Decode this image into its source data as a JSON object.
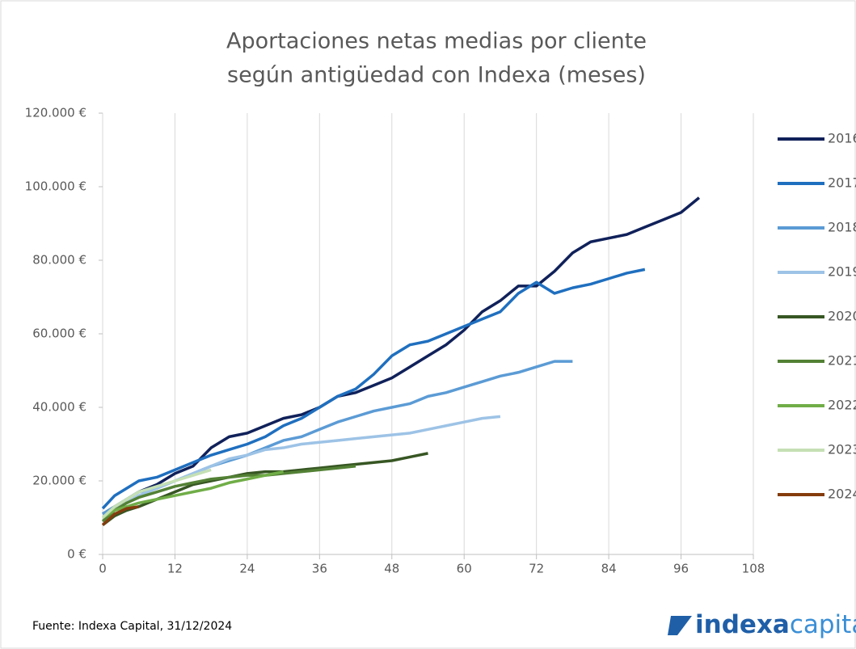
{
  "chart_data": {
    "type": "line",
    "title": [
      "Aportaciones netas medias por cliente",
      "según antigüedad con Indexa (meses)"
    ],
    "x": [
      0,
      2,
      4,
      6,
      9,
      12,
      15,
      18,
      21,
      24,
      27,
      30,
      33,
      36,
      39,
      42,
      45,
      48,
      51,
      54,
      57,
      60,
      63,
      66,
      69,
      72,
      75,
      78,
      81,
      84,
      87,
      90,
      93,
      96,
      99
    ],
    "xlim": [
      0,
      108
    ],
    "xticks": [
      0,
      12,
      24,
      36,
      48,
      60,
      72,
      84,
      96,
      108
    ],
    "ylim": [
      0,
      120000
    ],
    "yticks": [
      {
        "value": 0,
        "label": "0 €"
      },
      {
        "value": 20000,
        "label": "20.000 €"
      },
      {
        "value": 40000,
        "label": "40.000 €"
      },
      {
        "value": 60000,
        "label": "60.000 €"
      },
      {
        "value": 80000,
        "label": "80.000 €"
      },
      {
        "value": 100000,
        "label": "100.000 €"
      },
      {
        "value": 120000,
        "label": "120.000 €"
      }
    ],
    "grid": "x",
    "legend": "right",
    "series": [
      {
        "name": "2016",
        "color": "#10215a",
        "values": [
          11000,
          13000,
          15000,
          17000,
          19000,
          22000,
          24000,
          29000,
          32000,
          33000,
          35000,
          37000,
          38000,
          40000,
          43000,
          44000,
          46000,
          48000,
          51000,
          54000,
          57000,
          61000,
          66000,
          69000,
          73000,
          73000,
          77000,
          82000,
          85000,
          86000,
          87000,
          89000,
          91000,
          93000,
          97000
        ]
      },
      {
        "name": "2017",
        "color": "#1f6fbf",
        "values": [
          12500,
          16000,
          18000,
          20000,
          21000,
          23000,
          25000,
          27000,
          28500,
          30000,
          32000,
          35000,
          37000,
          40000,
          43000,
          45000,
          49000,
          54000,
          57000,
          58000,
          60000,
          62000,
          64000,
          66000,
          71000,
          74000,
          71000,
          72500,
          73500,
          75000,
          76500,
          77500,
          null,
          null,
          null
        ]
      },
      {
        "name": "2018",
        "color": "#5b9bd5",
        "values": [
          11000,
          13000,
          15000,
          17000,
          18000,
          20000,
          22000,
          24000,
          25500,
          27000,
          29000,
          31000,
          32000,
          34000,
          36000,
          37500,
          39000,
          40000,
          41000,
          43000,
          44000,
          45500,
          47000,
          48500,
          49500,
          51000,
          52500,
          52500,
          null,
          null,
          null,
          null,
          null,
          null,
          null
        ]
      },
      {
        "name": "2019",
        "color": "#9dc3e6",
        "values": [
          10000,
          12000,
          14000,
          16000,
          18000,
          20000,
          22000,
          24000,
          26000,
          27000,
          28500,
          29000,
          30000,
          30500,
          31000,
          31500,
          32000,
          32500,
          33000,
          34000,
          35000,
          36000,
          37000,
          37500,
          null,
          null,
          null,
          null,
          null,
          null,
          null,
          null,
          null,
          null,
          null
        ]
      },
      {
        "name": "2020",
        "color": "#375623",
        "values": [
          8000,
          10500,
          12000,
          13000,
          15000,
          17000,
          19000,
          20000,
          21000,
          22000,
          22500,
          22500,
          23000,
          23500,
          24000,
          24500,
          25000,
          25500,
          26500,
          27500,
          null,
          null,
          null,
          null,
          null,
          null,
          null,
          null,
          null,
          null,
          null,
          null,
          null,
          null,
          null
        ]
      },
      {
        "name": "2021",
        "color": "#538135",
        "values": [
          9000,
          12000,
          14000,
          15500,
          17000,
          18500,
          19500,
          20500,
          21000,
          21500,
          21500,
          22000,
          22500,
          23000,
          23500,
          24000,
          null,
          null,
          null,
          null,
          null,
          null,
          null,
          null,
          null,
          null,
          null,
          null,
          null,
          null,
          null,
          null,
          null,
          null,
          null
        ]
      },
      {
        "name": "2022",
        "color": "#70ad47",
        "values": [
          10000,
          12000,
          13000,
          14000,
          15000,
          16000,
          17000,
          18000,
          19500,
          20500,
          21500,
          22500,
          null,
          null,
          null,
          null,
          null,
          null,
          null,
          null,
          null,
          null,
          null,
          null,
          null,
          null,
          null,
          null,
          null,
          null,
          null,
          null,
          null,
          null,
          null
        ]
      },
      {
        "name": "2023",
        "color": "#c5e0b4",
        "values": [
          10000,
          13000,
          15000,
          17000,
          18500,
          20000,
          21500,
          23000,
          null,
          null,
          null,
          null,
          null,
          null,
          null,
          null,
          null,
          null,
          null,
          null,
          null,
          null,
          null,
          null,
          null,
          null,
          null,
          null,
          null,
          null,
          null,
          null,
          null,
          null,
          null
        ]
      },
      {
        "name": "2024",
        "color": "#843c0c",
        "values": [
          8000,
          11000,
          12500,
          13000,
          null,
          null,
          null,
          null,
          null,
          null,
          null,
          null,
          null,
          null,
          null,
          null,
          null,
          null,
          null,
          null,
          null,
          null,
          null,
          null,
          null,
          null,
          null,
          null,
          null,
          null,
          null,
          null,
          null,
          null,
          null
        ]
      }
    ]
  },
  "footer": "Fuente: Indexa Capital, 31/12/2024",
  "logo": [
    "indexa",
    "capital"
  ]
}
